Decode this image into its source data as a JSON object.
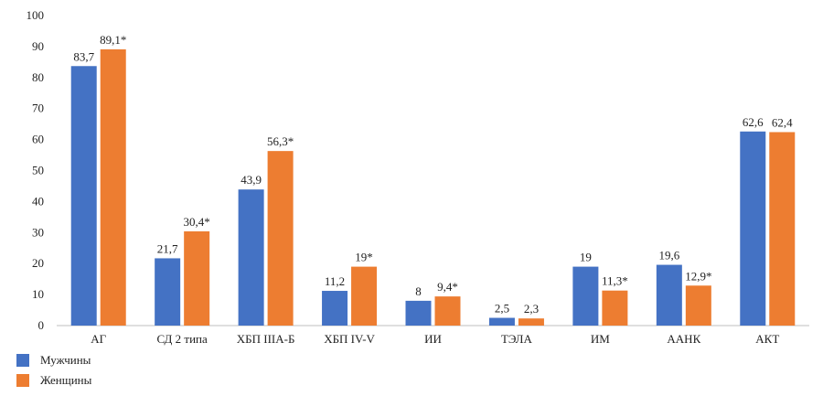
{
  "chart_data": {
    "type": "bar",
    "categories": [
      "АГ",
      "СД 2 типа",
      "ХБП IIIА-Б",
      "ХБП IV-V",
      "ИИ",
      "ТЭЛА",
      "ИМ",
      "ААНК",
      "АКТ"
    ],
    "series": [
      {
        "name": "Мужчины",
        "color": "#4472C4",
        "values": [
          83.7,
          21.7,
          43.9,
          11.2,
          8,
          2.5,
          19,
          19.6,
          62.6
        ],
        "labels": [
          "83,7",
          "21,7",
          "43,9",
          "11,2",
          "8",
          "2,5",
          "19",
          "19,6",
          "62,6"
        ]
      },
      {
        "name": "Женщины",
        "color": "#ED7D31",
        "values": [
          89.1,
          30.4,
          56.3,
          19,
          9.4,
          2.3,
          11.3,
          12.9,
          62.4
        ],
        "labels": [
          "89,1*",
          "30,4*",
          "56,3*",
          "19*",
          "9,4*",
          "2,3",
          "11,3*",
          "12,9*",
          "62,4"
        ]
      }
    ],
    "yticks": [
      "0",
      "10",
      "20",
      "30",
      "40",
      "50",
      "60",
      "70",
      "80",
      "90",
      "100"
    ],
    "ylim": [
      0,
      100
    ],
    "grid": false,
    "legend_position": "bottom-left"
  }
}
